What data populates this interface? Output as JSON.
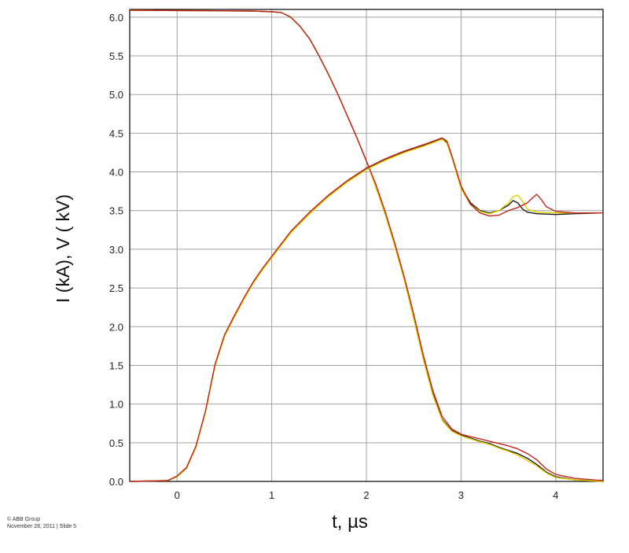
{
  "chart_data": {
    "type": "line",
    "xlabel": "t, µs",
    "ylabel": "I (kA),  V ( kV)",
    "xlim": [
      -0.5,
      4.5
    ],
    "ylim": [
      0.0,
      6.1
    ],
    "xticks": [
      0,
      1,
      2,
      3,
      4
    ],
    "xtick_labels": [
      "0",
      "1",
      "2",
      "3",
      "4"
    ],
    "yticks": [
      0.0,
      0.5,
      1.0,
      1.5,
      2.0,
      2.5,
      3.0,
      3.5,
      4.0,
      4.5,
      5.0,
      5.5,
      6.0
    ],
    "ytick_labels": [
      "0.0",
      "0.5",
      "1.0",
      "1.5",
      "2.0",
      "2.5",
      "3.0",
      "3.5",
      "4.0",
      "4.5",
      "5.0",
      "5.5",
      "6.0"
    ],
    "grid": true,
    "legend": "none",
    "series": [
      {
        "color": "#1a1a1a",
        "x": [
          -0.5,
          0.8,
          1.0,
          1.1,
          1.2,
          1.3,
          1.4,
          1.5,
          1.6,
          1.7,
          1.8,
          1.9,
          2.0,
          2.1,
          2.2,
          2.3,
          2.4,
          2.5,
          2.6,
          2.7,
          2.8,
          2.9,
          3.0,
          3.1,
          3.2,
          3.3,
          3.4,
          3.5,
          3.6,
          3.7,
          3.8,
          3.9,
          4.0,
          4.2,
          4.5
        ],
        "y": [
          6.09,
          6.08,
          6.07,
          6.06,
          6.0,
          5.88,
          5.72,
          5.5,
          5.26,
          5.0,
          4.72,
          4.44,
          4.14,
          3.82,
          3.46,
          3.06,
          2.62,
          2.12,
          1.6,
          1.14,
          0.8,
          0.66,
          0.6,
          0.56,
          0.52,
          0.49,
          0.44,
          0.4,
          0.36,
          0.3,
          0.22,
          0.12,
          0.06,
          0.02,
          0.0
        ]
      },
      {
        "color": "#e0d000",
        "x": [
          -0.5,
          0.8,
          1.0,
          1.1,
          1.2,
          1.3,
          1.4,
          1.5,
          1.6,
          1.7,
          1.8,
          1.9,
          2.0,
          2.1,
          2.2,
          2.3,
          2.4,
          2.5,
          2.6,
          2.7,
          2.8,
          2.9,
          3.0,
          3.1,
          3.2,
          3.3,
          3.4,
          3.5,
          3.6,
          3.7,
          3.8,
          3.9,
          4.0,
          4.2,
          4.5
        ],
        "y": [
          6.09,
          6.08,
          6.07,
          6.06,
          6.0,
          5.88,
          5.72,
          5.5,
          5.26,
          5.0,
          4.72,
          4.44,
          4.14,
          3.8,
          3.44,
          3.04,
          2.6,
          2.1,
          1.58,
          1.12,
          0.79,
          0.65,
          0.59,
          0.55,
          0.51,
          0.48,
          0.43,
          0.39,
          0.34,
          0.27,
          0.2,
          0.11,
          0.05,
          0.02,
          0.0
        ]
      },
      {
        "color": "#c0281e",
        "x": [
          -0.5,
          0.8,
          1.0,
          1.1,
          1.2,
          1.3,
          1.4,
          1.5,
          1.6,
          1.7,
          1.8,
          1.9,
          2.0,
          2.1,
          2.2,
          2.3,
          2.4,
          2.5,
          2.6,
          2.7,
          2.8,
          2.9,
          3.0,
          3.1,
          3.2,
          3.3,
          3.4,
          3.5,
          3.6,
          3.7,
          3.8,
          3.9,
          4.0,
          4.2,
          4.5
        ],
        "y": [
          6.09,
          6.08,
          6.07,
          6.06,
          6.0,
          5.88,
          5.72,
          5.5,
          5.26,
          5.0,
          4.72,
          4.44,
          4.14,
          3.84,
          3.48,
          3.08,
          2.64,
          2.16,
          1.64,
          1.18,
          0.84,
          0.68,
          0.61,
          0.58,
          0.55,
          0.52,
          0.49,
          0.46,
          0.42,
          0.36,
          0.28,
          0.16,
          0.09,
          0.04,
          0.01
        ]
      },
      {
        "color": "#1a1a1a",
        "x": [
          -0.5,
          -0.1,
          0.0,
          0.1,
          0.2,
          0.3,
          0.4,
          0.5,
          0.6,
          0.7,
          0.8,
          0.9,
          1.0,
          1.2,
          1.4,
          1.6,
          1.8,
          2.0,
          2.2,
          2.4,
          2.6,
          2.8,
          2.85,
          2.9,
          3.0,
          3.1,
          3.2,
          3.3,
          3.4,
          3.5,
          3.55,
          3.6,
          3.65,
          3.7,
          3.8,
          4.0,
          4.2,
          4.5
        ],
        "y": [
          0.0,
          0.01,
          0.06,
          0.17,
          0.45,
          0.9,
          1.5,
          1.88,
          2.12,
          2.35,
          2.56,
          2.74,
          2.9,
          3.22,
          3.47,
          3.69,
          3.88,
          4.04,
          4.16,
          4.26,
          4.34,
          4.43,
          4.38,
          4.2,
          3.8,
          3.6,
          3.5,
          3.47,
          3.5,
          3.57,
          3.63,
          3.6,
          3.52,
          3.48,
          3.46,
          3.45,
          3.46,
          3.47
        ]
      },
      {
        "color": "#e0d000",
        "x": [
          -0.5,
          -0.1,
          0.0,
          0.1,
          0.2,
          0.3,
          0.4,
          0.5,
          0.6,
          0.7,
          0.8,
          0.9,
          1.0,
          1.2,
          1.4,
          1.6,
          1.8,
          2.0,
          2.2,
          2.4,
          2.6,
          2.8,
          2.85,
          2.9,
          3.0,
          3.1,
          3.2,
          3.3,
          3.4,
          3.5,
          3.55,
          3.6,
          3.65,
          3.7,
          3.8,
          4.0,
          4.2,
          4.5
        ],
        "y": [
          0.0,
          0.01,
          0.06,
          0.17,
          0.44,
          0.89,
          1.49,
          1.87,
          2.11,
          2.34,
          2.55,
          2.73,
          2.89,
          3.21,
          3.46,
          3.68,
          3.87,
          4.03,
          4.15,
          4.25,
          4.33,
          4.42,
          4.37,
          4.2,
          3.78,
          3.58,
          3.49,
          3.46,
          3.5,
          3.6,
          3.68,
          3.7,
          3.62,
          3.52,
          3.48,
          3.47,
          3.47,
          3.47
        ]
      },
      {
        "color": "#c0281e",
        "x": [
          -0.5,
          -0.1,
          0.0,
          0.1,
          0.2,
          0.3,
          0.4,
          0.5,
          0.6,
          0.7,
          0.8,
          0.9,
          1.0,
          1.2,
          1.4,
          1.6,
          1.8,
          2.0,
          2.2,
          2.4,
          2.6,
          2.8,
          2.85,
          2.9,
          3.0,
          3.1,
          3.2,
          3.3,
          3.4,
          3.5,
          3.6,
          3.7,
          3.75,
          3.8,
          3.85,
          3.9,
          4.0,
          4.2,
          4.5
        ],
        "y": [
          0.0,
          0.01,
          0.07,
          0.18,
          0.46,
          0.91,
          1.51,
          1.89,
          2.13,
          2.36,
          2.57,
          2.75,
          2.91,
          3.23,
          3.48,
          3.7,
          3.89,
          4.05,
          4.17,
          4.27,
          4.35,
          4.44,
          4.4,
          4.22,
          3.82,
          3.58,
          3.47,
          3.43,
          3.44,
          3.5,
          3.54,
          3.6,
          3.66,
          3.71,
          3.64,
          3.55,
          3.49,
          3.47,
          3.47
        ]
      }
    ]
  },
  "footer": {
    "line1": "© ABB Group",
    "line2": "November 28, 2011 | Slide 5"
  }
}
